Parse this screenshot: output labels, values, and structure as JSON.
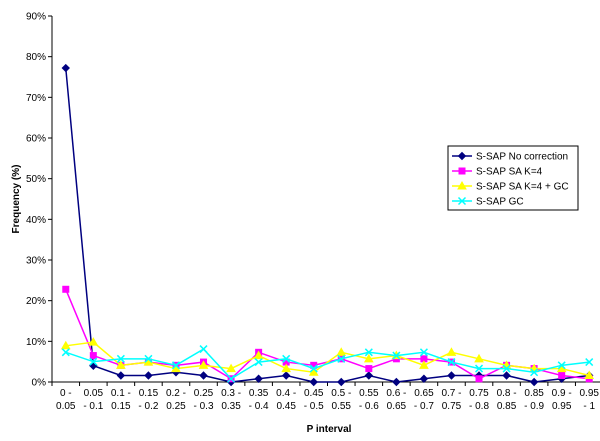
{
  "chart_data": {
    "type": "line",
    "title": "",
    "xlabel": "P interval",
    "ylabel": "Frequency (%)",
    "ylim": [
      0,
      90
    ],
    "yticks": [
      "0%",
      "10%",
      "20%",
      "30%",
      "40%",
      "50%",
      "60%",
      "70%",
      "80%",
      "90%"
    ],
    "grid": false,
    "legend_position": "right",
    "categories": [
      [
        "0 -",
        "0.05"
      ],
      [
        "0.05",
        "- 0.1"
      ],
      [
        "0.1 -",
        "0.15"
      ],
      [
        "0.15",
        "- 0.2"
      ],
      [
        "0.2 -",
        "0.25"
      ],
      [
        "0.25",
        "- 0.3"
      ],
      [
        "0.3 -",
        "0.35"
      ],
      [
        "0.35",
        "- 0.4"
      ],
      [
        "0.4 -",
        "0.45"
      ],
      [
        "0.45",
        "- 0.5"
      ],
      [
        "0.5 -",
        "0.55"
      ],
      [
        "0.55",
        "- 0.6"
      ],
      [
        "0.6 -",
        "0.65"
      ],
      [
        "0.65",
        "- 0.7"
      ],
      [
        "0.7 -",
        "0.75"
      ],
      [
        "0.75",
        "- 0.8"
      ],
      [
        "0.8 -",
        "0.85"
      ],
      [
        "0.85",
        "- 0.9"
      ],
      [
        "0.9 -",
        "0.95"
      ],
      [
        "0.95",
        "- 1"
      ]
    ],
    "series": [
      {
        "name": "S-SAP No correction",
        "color": "#000080",
        "marker": "diamond",
        "values": [
          77.2,
          4.0,
          1.6,
          1.6,
          2.4,
          1.6,
          0.0,
          0.8,
          1.6,
          0.0,
          0.0,
          1.6,
          0.0,
          0.8,
          1.6,
          1.6,
          1.6,
          0.0,
          0.8,
          1.6
        ]
      },
      {
        "name": "S-SAP SA K=4",
        "color": "#FF00FF",
        "marker": "square",
        "values": [
          22.8,
          6.5,
          4.1,
          4.9,
          4.1,
          4.9,
          0.8,
          7.3,
          4.9,
          4.1,
          5.7,
          3.3,
          5.7,
          5.7,
          4.9,
          0.8,
          4.1,
          3.3,
          1.6,
          0.8
        ]
      },
      {
        "name": "S-SAP SA K=4 + GC",
        "color": "#FFFF00",
        "marker": "triangle",
        "values": [
          8.9,
          9.8,
          4.1,
          4.9,
          3.3,
          4.1,
          3.3,
          6.5,
          3.3,
          2.4,
          7.3,
          5.7,
          6.5,
          4.1,
          7.3,
          5.7,
          4.1,
          3.3,
          3.3,
          1.6
        ]
      },
      {
        "name": "S-SAP GC",
        "color": "#00FFFF",
        "marker": "x",
        "values": [
          7.3,
          5.0,
          5.7,
          5.7,
          4.1,
          8.1,
          0.8,
          4.9,
          5.7,
          3.3,
          5.7,
          7.3,
          6.5,
          7.3,
          4.9,
          3.3,
          3.3,
          2.4,
          4.1,
          4.9
        ]
      }
    ]
  }
}
